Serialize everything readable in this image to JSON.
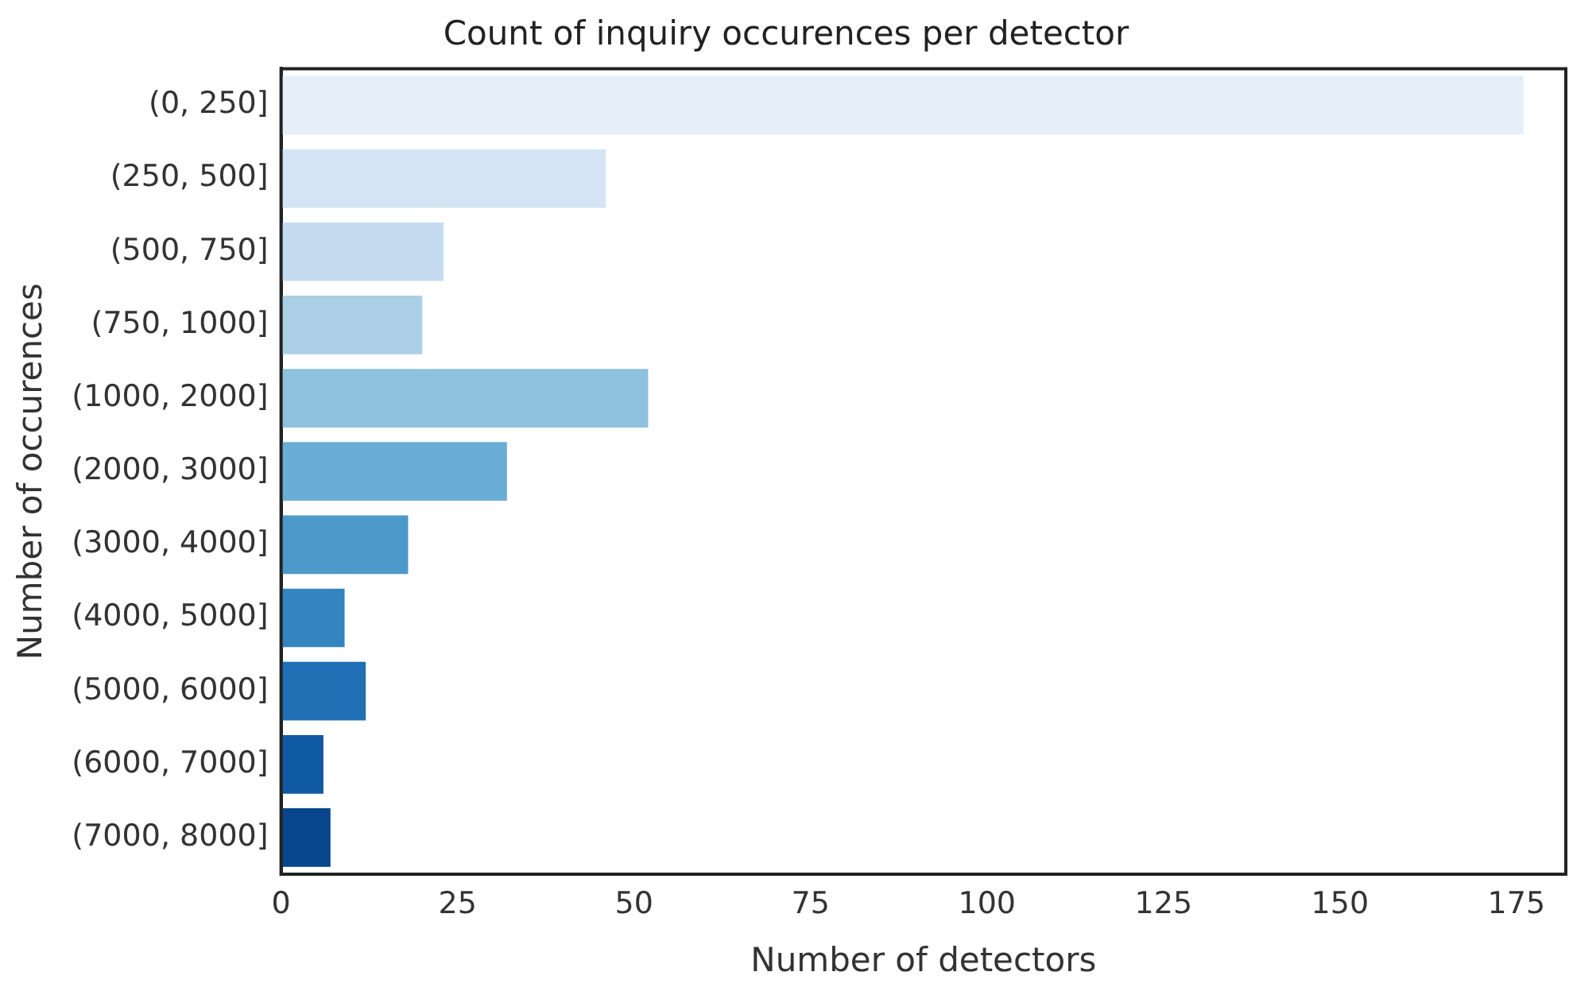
{
  "chart_data": {
    "type": "bar",
    "orientation": "horizontal",
    "title": "Count of inquiry occurences per detector",
    "xlabel": "Number of detectors",
    "ylabel": "Number of occurences",
    "categories": [
      "(0, 250]",
      "(250, 500]",
      "(500, 750]",
      "(750, 1000]",
      "(1000, 2000]",
      "(2000, 3000]",
      "(3000, 4000]",
      "(4000, 5000]",
      "(5000, 6000]",
      "(6000, 7000]",
      "(7000, 8000]"
    ],
    "values": [
      176,
      46,
      23,
      20,
      52,
      32,
      18,
      9,
      12,
      6,
      7
    ],
    "colors": [
      "#e6eff9",
      "#d4e4f4",
      "#c4daee",
      "#abd0e6",
      "#8dc1dd",
      "#6aaed6",
      "#4d99ca",
      "#3484bf",
      "#206fb4",
      "#0f5aa3",
      "#08458a"
    ],
    "xlim": [
      0,
      182
    ],
    "xticks": [
      0,
      25,
      50,
      75,
      100,
      125,
      150,
      175
    ],
    "grid": false,
    "legend": false
  }
}
